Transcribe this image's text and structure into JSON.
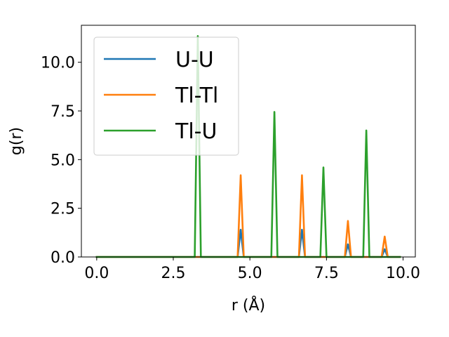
{
  "chart_data": {
    "type": "line",
    "xlabel": "r (Å)",
    "ylabel": "g(r)",
    "xlim": [
      -0.5,
      10.4
    ],
    "ylim": [
      0,
      11.9
    ],
    "xticks": [
      0.0,
      2.5,
      5.0,
      7.5,
      10.0
    ],
    "xtick_labels": [
      "0.0",
      "2.5",
      "5.0",
      "7.5",
      "10.0"
    ],
    "yticks": [
      0.0,
      2.5,
      5.0,
      7.5,
      10.0
    ],
    "ytick_labels": [
      "0.0",
      "2.5",
      "5.0",
      "7.5",
      "10.0"
    ],
    "grid": false,
    "legend": "upper-left",
    "series": [
      {
        "name": "U-U",
        "color": "#1f77b4",
        "points": [
          [
            0,
            0
          ],
          [
            4.6,
            0
          ],
          [
            4.7,
            1.4
          ],
          [
            4.8,
            0
          ],
          [
            6.6,
            0
          ],
          [
            6.7,
            1.4
          ],
          [
            6.8,
            0
          ],
          [
            8.1,
            0
          ],
          [
            8.2,
            0.65
          ],
          [
            8.3,
            0
          ],
          [
            9.3,
            0
          ],
          [
            9.4,
            0.4
          ],
          [
            9.5,
            0
          ],
          [
            9.9,
            0
          ]
        ]
      },
      {
        "name": "Tl-Tl",
        "color": "#ff7f0e",
        "points": [
          [
            0,
            0
          ],
          [
            4.6,
            0
          ],
          [
            4.7,
            4.2
          ],
          [
            4.8,
            0
          ],
          [
            6.6,
            0
          ],
          [
            6.7,
            4.2
          ],
          [
            6.8,
            0
          ],
          [
            8.1,
            0
          ],
          [
            8.2,
            1.85
          ],
          [
            8.3,
            0
          ],
          [
            9.3,
            0
          ],
          [
            9.4,
            1.05
          ],
          [
            9.5,
            0
          ],
          [
            9.9,
            0
          ]
        ]
      },
      {
        "name": "Tl-U",
        "color": "#2ca02c",
        "points": [
          [
            0,
            0
          ],
          [
            3.2,
            0
          ],
          [
            3.3,
            11.35
          ],
          [
            3.4,
            0
          ],
          [
            5.7,
            0
          ],
          [
            5.8,
            7.45
          ],
          [
            5.9,
            0
          ],
          [
            7.3,
            0
          ],
          [
            7.4,
            4.6
          ],
          [
            7.5,
            0
          ],
          [
            8.7,
            0
          ],
          [
            8.8,
            6.5
          ],
          [
            8.9,
            0
          ],
          [
            9.9,
            0
          ]
        ]
      }
    ]
  }
}
